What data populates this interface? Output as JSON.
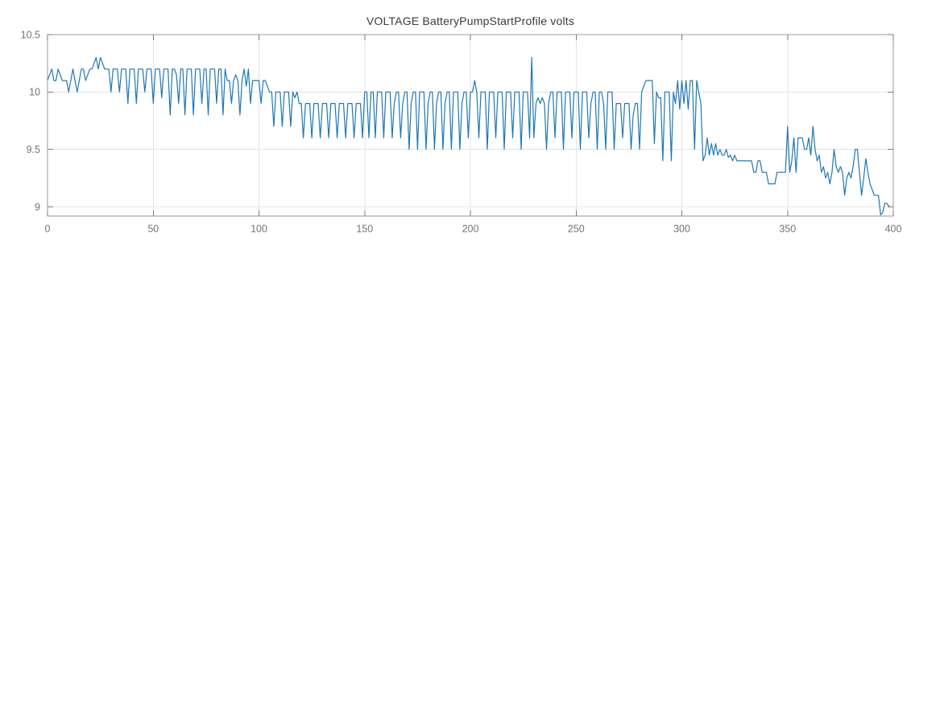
{
  "page": {
    "background": "#ffffff"
  },
  "chart_data": {
    "type": "line",
    "title": "VOLTAGE BatteryPumpStartProfile volts",
    "xlabel": "",
    "ylabel": "",
    "xlim": [
      0,
      400
    ],
    "ylim": [
      8.92,
      10.5
    ],
    "xtick_values": [
      0,
      50,
      100,
      150,
      200,
      250,
      300,
      350,
      400
    ],
    "xtick_labels": [
      "0",
      "50",
      "100",
      "150",
      "200",
      "250",
      "300",
      "350",
      "400"
    ],
    "ytick_values": [
      10.5,
      10,
      9.5,
      9
    ],
    "ytick_labels": [
      "10.5",
      "10",
      "9.5",
      "9"
    ],
    "grid": true,
    "legend": "none",
    "colors": {
      "line": "#1f77b4",
      "grid": "#e4e4e4",
      "border": "#9a9a9a",
      "ticks": "#7a7a7a",
      "tick_labels": "#737373",
      "title": "#3a3a3a"
    },
    "series": [
      {
        "name": "VOLTAGE",
        "color": "#1f77b4",
        "x_start": 0,
        "x_step": 1,
        "values": [
          10.1,
          10.15,
          10.2,
          10.1,
          10.1,
          10.2,
          10.15,
          10.1,
          10.1,
          10.1,
          10.0,
          10.1,
          10.2,
          10.1,
          10.0,
          10.1,
          10.2,
          10.2,
          10.1,
          10.15,
          10.2,
          10.2,
          10.25,
          10.3,
          10.2,
          10.3,
          10.25,
          10.2,
          10.2,
          10.2,
          10.0,
          10.2,
          10.2,
          10.2,
          10.0,
          10.2,
          10.2,
          10.2,
          9.9,
          10.2,
          10.2,
          10.2,
          9.9,
          10.2,
          10.2,
          10.2,
          10.0,
          10.2,
          10.2,
          10.2,
          9.9,
          10.2,
          10.2,
          10.2,
          9.95,
          10.2,
          10.2,
          10.2,
          9.8,
          10.2,
          10.2,
          10.15,
          9.9,
          10.2,
          10.2,
          9.8,
          10.2,
          10.2,
          10.2,
          9.8,
          10.2,
          10.2,
          10.2,
          9.9,
          10.2,
          10.2,
          9.8,
          10.2,
          10.2,
          10.2,
          9.9,
          10.2,
          10.2,
          9.8,
          10.2,
          10.1,
          10.1,
          9.9,
          10.1,
          10.15,
          10.1,
          9.8,
          10.1,
          10.2,
          10.05,
          10.2,
          9.9,
          10.1,
          10.1,
          10.1,
          10.1,
          9.9,
          10.1,
          10.1,
          10.05,
          10.0,
          10.0,
          9.7,
          10.0,
          10.0,
          10.0,
          9.7,
          10.0,
          10.0,
          10.0,
          9.7,
          10.0,
          9.95,
          10.0,
          9.9,
          9.9,
          9.6,
          9.9,
          9.9,
          9.9,
          9.6,
          9.9,
          9.9,
          9.9,
          9.6,
          9.9,
          9.9,
          9.9,
          9.6,
          9.9,
          9.9,
          9.9,
          9.6,
          9.9,
          9.9,
          9.9,
          9.6,
          9.9,
          9.9,
          9.9,
          9.6,
          9.9,
          9.9,
          9.9,
          9.6,
          10.0,
          10.0,
          9.6,
          10.0,
          10.0,
          9.6,
          10.0,
          10.0,
          10.0,
          9.6,
          10.0,
          10.0,
          10.0,
          9.6,
          9.9,
          10.0,
          10.0,
          9.6,
          9.9,
          10.0,
          10.0,
          9.5,
          9.9,
          10.0,
          10.0,
          9.5,
          10.0,
          10.0,
          10.0,
          9.5,
          9.9,
          10.0,
          10.0,
          9.5,
          9.9,
          10.0,
          10.0,
          9.5,
          9.9,
          10.0,
          10.0,
          9.5,
          10.0,
          10.0,
          10.0,
          9.5,
          9.9,
          10.0,
          10.0,
          9.6,
          10.0,
          10.0,
          10.1,
          10.0,
          9.6,
          10.0,
          10.0,
          10.0,
          9.5,
          10.0,
          10.0,
          10.0,
          9.6,
          10.0,
          10.0,
          10.0,
          9.5,
          10.0,
          10.0,
          10.0,
          9.6,
          10.0,
          10.0,
          10.0,
          9.5,
          10.0,
          10.0,
          10.0,
          9.6,
          10.3,
          9.6,
          9.9,
          9.95,
          9.9,
          9.95,
          9.9,
          9.5,
          9.9,
          10.0,
          10.0,
          9.6,
          10.0,
          10.0,
          10.0,
          9.5,
          10.0,
          10.0,
          10.0,
          9.6,
          10.0,
          10.0,
          10.0,
          9.5,
          10.0,
          10.0,
          10.0,
          9.6,
          9.9,
          10.0,
          10.0,
          9.5,
          10.0,
          10.0,
          9.9,
          9.5,
          10.0,
          10.0,
          10.0,
          9.5,
          9.9,
          9.9,
          9.9,
          9.6,
          9.9,
          9.9,
          9.9,
          9.5,
          9.8,
          9.9,
          9.9,
          9.5,
          10.0,
          10.05,
          10.1,
          10.1,
          10.1,
          10.1,
          9.55,
          10.0,
          9.95,
          9.95,
          9.4,
          10.0,
          10.0,
          10.0,
          9.4,
          10.0,
          9.9,
          10.1,
          9.85,
          10.1,
          9.9,
          10.1,
          9.85,
          10.1,
          10.1,
          9.5,
          10.1,
          10.0,
          9.9,
          9.4,
          9.45,
          9.6,
          9.45,
          9.55,
          9.45,
          9.55,
          9.45,
          9.5,
          9.45,
          9.45,
          9.5,
          9.43,
          9.45,
          9.4,
          9.45,
          9.4,
          9.4,
          9.4,
          9.4,
          9.4,
          9.4,
          9.4,
          9.4,
          9.3,
          9.3,
          9.4,
          9.4,
          9.3,
          9.3,
          9.3,
          9.2,
          9.2,
          9.2,
          9.2,
          9.3,
          9.3,
          9.3,
          9.3,
          9.3,
          9.7,
          9.3,
          9.4,
          9.6,
          9.3,
          9.6,
          9.6,
          9.6,
          9.5,
          9.5,
          9.6,
          9.45,
          9.7,
          9.5,
          9.4,
          9.45,
          9.3,
          9.35,
          9.25,
          9.3,
          9.2,
          9.3,
          9.5,
          9.35,
          9.3,
          9.35,
          9.3,
          9.1,
          9.25,
          9.3,
          9.25,
          9.35,
          9.5,
          9.5,
          9.3,
          9.1,
          9.25,
          9.42,
          9.3,
          9.2,
          9.15,
          9.1,
          9.1,
          9.1,
          8.93,
          8.95,
          9.03,
          9.03,
          9.0,
          9.0
        ]
      }
    ]
  }
}
